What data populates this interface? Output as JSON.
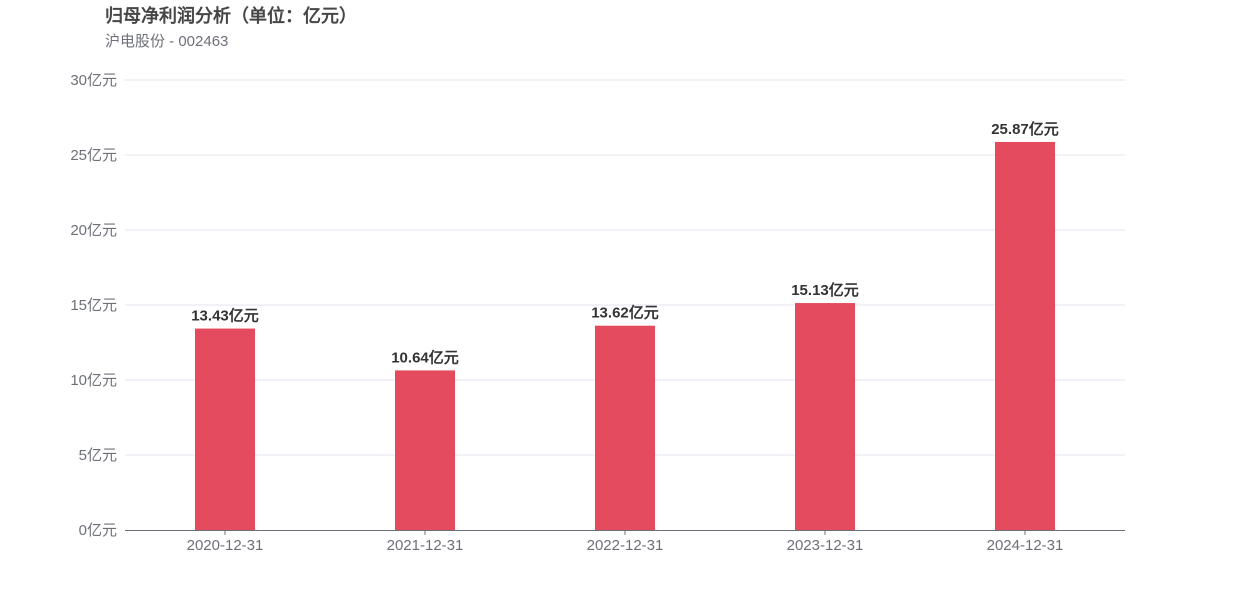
{
  "chart_data": {
    "type": "bar",
    "title": "归母净利润分析（单位：亿元）",
    "subtitle": "沪电股份 - 002463",
    "categories": [
      "2020-12-31",
      "2021-12-31",
      "2022-12-31",
      "2023-12-31",
      "2024-12-31"
    ],
    "values": [
      13.43,
      10.64,
      13.62,
      15.13,
      25.87
    ],
    "data_labels": [
      "13.43亿元",
      "10.64亿元",
      "13.62亿元",
      "15.13亿元",
      "25.87亿元"
    ],
    "y_ticks": [
      0,
      5,
      10,
      15,
      20,
      25,
      30
    ],
    "y_tick_labels": [
      "0亿元",
      "5亿元",
      "10亿元",
      "15亿元",
      "20亿元",
      "25亿元",
      "30亿元"
    ],
    "ylim": [
      0,
      30
    ],
    "grid": true,
    "legend": "none"
  },
  "colors": {
    "bar": "#e54b5f",
    "grid": "#e0e6f1",
    "axis": "#6e7079"
  }
}
